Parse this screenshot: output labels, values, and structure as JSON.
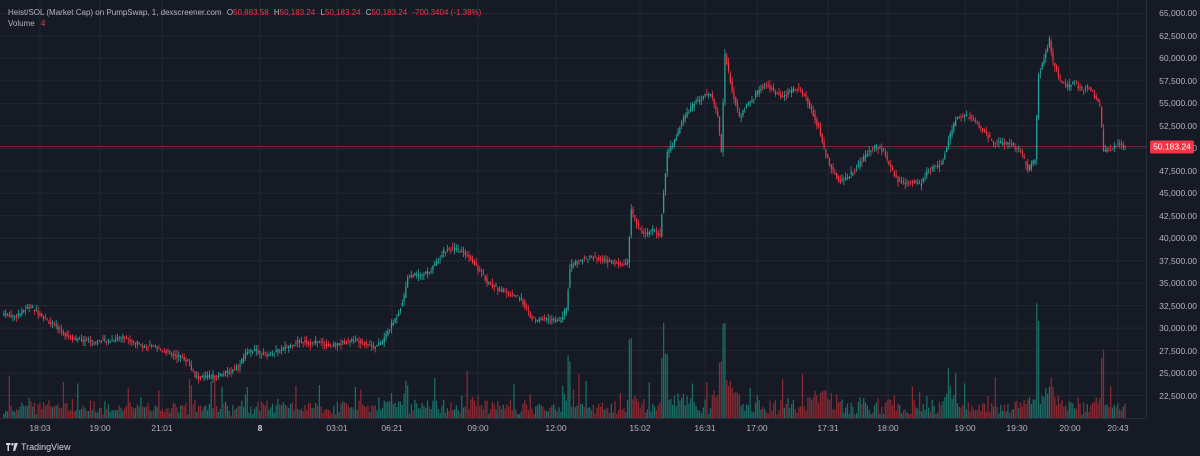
{
  "legend": {
    "title": "Heist/SOL (Market Cap) on PumpSwap, 1, dexscreener.com",
    "o_label": "O",
    "o_value": "50,883.58",
    "h_label": "H",
    "h_value": "50,183.24",
    "l_label": "L",
    "l_value": "50,183.24",
    "c_label": "C",
    "c_value": "50,183.24",
    "change": "-700.3404 (-1.38%)",
    "volume_label": "Volume",
    "volume_value": "4"
  },
  "last_price_label": "50,183.24",
  "watermark": "TradingView",
  "colors": {
    "background": "#161a25",
    "up": "#26a69a",
    "down": "#f23645",
    "grid": "#232734",
    "up_vol": "#1c6e66",
    "down_vol": "#8a2a33"
  },
  "chart_data": {
    "type": "candlestick",
    "title": "Heist/SOL (Market Cap) on PumpSwap, 1, dexscreener.com",
    "ylim": [
      20000,
      66500
    ],
    "y_ticks": [
      "22,500.00",
      "25,000.00",
      "27,500.00",
      "30,000.00",
      "32,500.00",
      "35,000.00",
      "37,500.00",
      "40,000.00",
      "42,500.00",
      "45,000.00",
      "47,500.00",
      "50,000.00",
      "52,500.00",
      "55,000.00",
      "57,500.00",
      "60,000.00",
      "62,500.00",
      "65,000.00"
    ],
    "x_ticks": [
      "18:03",
      "19:00",
      "21:01",
      "8",
      "03:01",
      "06:21",
      "09:00",
      "12:00",
      "15:02",
      "16:31",
      "17:00",
      "17:31",
      "18:00",
      "19:00",
      "19:30",
      "20:00",
      "20:43"
    ],
    "bold_x_tick": "8",
    "last_price": 50183.24,
    "close_path": [
      [
        0,
        31600
      ],
      [
        6,
        31300
      ],
      [
        10,
        31800
      ],
      [
        14,
        32400
      ],
      [
        18,
        31900
      ],
      [
        22,
        31200
      ],
      [
        26,
        30500
      ],
      [
        30,
        30000
      ],
      [
        34,
        29300
      ],
      [
        38,
        28900
      ],
      [
        42,
        28600
      ],
      [
        46,
        28700
      ],
      [
        50,
        28400
      ],
      [
        54,
        28600
      ],
      [
        58,
        28500
      ],
      [
        62,
        28800
      ],
      [
        66,
        29000
      ],
      [
        70,
        28600
      ],
      [
        74,
        28300
      ],
      [
        78,
        27900
      ],
      [
        82,
        28000
      ],
      [
        86,
        27600
      ],
      [
        90,
        27400
      ],
      [
        94,
        27000
      ],
      [
        98,
        26800
      ],
      [
        102,
        26300
      ],
      [
        104,
        25400
      ],
      [
        106,
        24600
      ],
      [
        110,
        24500
      ],
      [
        114,
        24600
      ],
      [
        118,
        24700
      ],
      [
        122,
        24900
      ],
      [
        126,
        25200
      ],
      [
        130,
        25800
      ],
      [
        134,
        27000
      ],
      [
        138,
        27600
      ],
      [
        142,
        27300
      ],
      [
        146,
        27000
      ],
      [
        150,
        27300
      ],
      [
        154,
        27600
      ],
      [
        158,
        28000
      ],
      [
        162,
        28400
      ],
      [
        166,
        28600
      ],
      [
        170,
        28300
      ],
      [
        174,
        28500
      ],
      [
        178,
        28200
      ],
      [
        182,
        28000
      ],
      [
        186,
        28300
      ],
      [
        190,
        28500
      ],
      [
        194,
        28700
      ],
      [
        198,
        28500
      ],
      [
        202,
        28200
      ],
      [
        206,
        27900
      ],
      [
        210,
        28500
      ],
      [
        214,
        30000
      ],
      [
        218,
        31300
      ],
      [
        222,
        33500
      ],
      [
        224,
        35800
      ],
      [
        228,
        35900
      ],
      [
        232,
        35800
      ],
      [
        236,
        36300
      ],
      [
        240,
        37300
      ],
      [
        244,
        38600
      ],
      [
        248,
        38900
      ],
      [
        252,
        38600
      ],
      [
        256,
        38300
      ],
      [
        260,
        37500
      ],
      [
        264,
        36300
      ],
      [
        268,
        35200
      ],
      [
        272,
        34600
      ],
      [
        276,
        34200
      ],
      [
        280,
        33800
      ],
      [
        284,
        33600
      ],
      [
        288,
        32900
      ],
      [
        292,
        31200
      ],
      [
        296,
        30800
      ],
      [
        300,
        31100
      ],
      [
        304,
        30900
      ],
      [
        308,
        30700
      ],
      [
        312,
        32000
      ],
      [
        314,
        36800
      ],
      [
        318,
        37300
      ],
      [
        322,
        37800
      ],
      [
        326,
        37900
      ],
      [
        330,
        37700
      ],
      [
        334,
        37500
      ],
      [
        338,
        37300
      ],
      [
        342,
        37100
      ],
      [
        346,
        37200
      ],
      [
        348,
        43200
      ],
      [
        352,
        41200
      ],
      [
        356,
        40400
      ],
      [
        360,
        40900
      ],
      [
        364,
        40300
      ],
      [
        366,
        45100
      ],
      [
        368,
        49500
      ],
      [
        372,
        50800
      ],
      [
        376,
        52900
      ],
      [
        380,
        54200
      ],
      [
        384,
        55200
      ],
      [
        388,
        55800
      ],
      [
        392,
        56200
      ],
      [
        396,
        53600
      ],
      [
        398,
        49800
      ],
      [
        400,
        60500
      ],
      [
        404,
        56300
      ],
      [
        408,
        53400
      ],
      [
        412,
        54800
      ],
      [
        416,
        55600
      ],
      [
        420,
        56800
      ],
      [
        424,
        57000
      ],
      [
        428,
        56200
      ],
      [
        432,
        55600
      ],
      [
        436,
        56300
      ],
      [
        440,
        56800
      ],
      [
        444,
        55900
      ],
      [
        448,
        54300
      ],
      [
        452,
        52200
      ],
      [
        456,
        49300
      ],
      [
        460,
        47400
      ],
      [
        464,
        46300
      ],
      [
        468,
        46800
      ],
      [
        472,
        47600
      ],
      [
        476,
        48600
      ],
      [
        480,
        49800
      ],
      [
        484,
        50300
      ],
      [
        488,
        49600
      ],
      [
        492,
        47700
      ],
      [
        496,
        46400
      ],
      [
        500,
        46200
      ],
      [
        504,
        46400
      ],
      [
        508,
        45900
      ],
      [
        512,
        47300
      ],
      [
        516,
        47900
      ],
      [
        520,
        48200
      ],
      [
        524,
        50800
      ],
      [
        528,
        53200
      ],
      [
        532,
        53700
      ],
      [
        536,
        53400
      ],
      [
        540,
        52700
      ],
      [
        544,
        51800
      ],
      [
        548,
        50800
      ],
      [
        552,
        50600
      ],
      [
        556,
        50500
      ],
      [
        560,
        50300
      ],
      [
        564,
        49700
      ],
      [
        568,
        47600
      ],
      [
        572,
        48700
      ],
      [
        574,
        58200
      ],
      [
        578,
        60600
      ],
      [
        580,
        62000
      ],
      [
        582,
        59600
      ],
      [
        586,
        57600
      ],
      [
        590,
        56800
      ],
      [
        594,
        57300
      ],
      [
        598,
        56600
      ],
      [
        602,
        56800
      ],
      [
        606,
        55600
      ],
      [
        608,
        54600
      ],
      [
        610,
        49700
      ],
      [
        614,
        49900
      ],
      [
        618,
        50500
      ],
      [
        622,
        50183
      ]
    ]
  }
}
